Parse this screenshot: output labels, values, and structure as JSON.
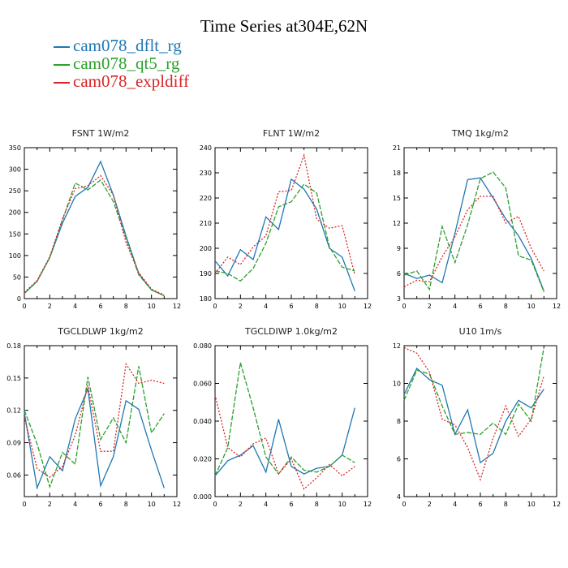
{
  "title": "Time Series at304E,62N",
  "legend": [
    {
      "label": "cam078_dflt_rg",
      "color": "#1f77b4"
    },
    {
      "label": "cam078_qt5_rg",
      "color": "#2ca02c"
    },
    {
      "label": "cam078_expldiff",
      "color": "#d62728"
    }
  ],
  "chart_data": [
    {
      "type": "line",
      "title": "FSNT 1W/m2",
      "x": [
        0,
        1,
        2,
        3,
        4,
        5,
        6,
        7,
        8,
        9,
        10,
        11
      ],
      "xlim": [
        0,
        12
      ],
      "xticks": [
        "0",
        "2",
        "4",
        "6",
        "8",
        "10",
        "12"
      ],
      "ylim": [
        0,
        350
      ],
      "yticks": [
        "0",
        "50",
        "100",
        "150",
        "200",
        "250",
        "300",
        "350"
      ],
      "series": [
        {
          "name": "cam078_dflt_rg",
          "values": [
            12,
            40,
            95,
            175,
            237,
            258,
            318,
            240,
            145,
            58,
            20,
            7
          ]
        },
        {
          "name": "cam078_qt5_rg",
          "values": [
            12,
            40,
            95,
            182,
            268,
            252,
            275,
            225,
            140,
            55,
            20,
            7
          ]
        },
        {
          "name": "cam078_expldiff",
          "values": [
            14,
            42,
            97,
            185,
            255,
            262,
            285,
            240,
            130,
            60,
            22,
            8
          ]
        }
      ]
    },
    {
      "type": "line",
      "title": "FLNT 1W/m2",
      "x": [
        0,
        1,
        2,
        3,
        4,
        5,
        6,
        7,
        8,
        9,
        10,
        11
      ],
      "xlim": [
        0,
        12
      ],
      "xticks": [
        "0",
        "2",
        "4",
        "6",
        "8",
        "10",
        "12"
      ],
      "ylim": [
        180,
        240
      ],
      "yticks": [
        "180",
        "190",
        "200",
        "210",
        "220",
        "230",
        "240"
      ],
      "series": [
        {
          "name": "cam078_dflt_rg",
          "values": [
            195,
            189,
            199.5,
            195.5,
            212.5,
            207.5,
            227.5,
            223.5,
            215.5,
            200,
            196.5,
            183
          ]
        },
        {
          "name": "cam078_qt5_rg",
          "values": [
            191,
            190,
            187,
            192,
            202,
            216.5,
            218.5,
            225.5,
            222,
            200.5,
            192.5,
            191
          ]
        },
        {
          "name": "cam078_expldiff",
          "values": [
            190,
            196.5,
            193.5,
            200.5,
            205,
            222.5,
            223,
            237,
            211.5,
            208,
            209,
            189.5
          ]
        }
      ]
    },
    {
      "type": "line",
      "title": "TMQ 1kg/m2",
      "x": [
        0,
        1,
        2,
        3,
        4,
        5,
        6,
        7,
        8,
        9,
        10,
        11
      ],
      "xlim": [
        0,
        12
      ],
      "xticks": [
        "0",
        "2",
        "4",
        "6",
        "8",
        "10",
        "12"
      ],
      "ylim": [
        3,
        21
      ],
      "yticks": [
        "3",
        "6",
        "9",
        "12",
        "15",
        "18",
        "21"
      ],
      "series": [
        {
          "name": "cam078_dflt_rg",
          "values": [
            6,
            5.4,
            5.8,
            4.9,
            10.8,
            17.2,
            17.4,
            15,
            12.5,
            10.5,
            7.8,
            3.9
          ]
        },
        {
          "name": "cam078_qt5_rg",
          "values": [
            5.8,
            6.3,
            4.1,
            11.6,
            7.3,
            11.8,
            17.3,
            18.1,
            16.2,
            8.1,
            7.6,
            3.8
          ]
        },
        {
          "name": "cam078_expldiff",
          "values": [
            4.4,
            5.2,
            5,
            8,
            10.4,
            13.6,
            15.2,
            15.2,
            12,
            12.8,
            9,
            6.3
          ]
        }
      ]
    },
    {
      "type": "line",
      "title": "TGCLDLWP 1kg/m2",
      "x": [
        0,
        1,
        2,
        3,
        4,
        5,
        6,
        7,
        8,
        9,
        10,
        11
      ],
      "xlim": [
        0,
        12
      ],
      "xticks": [
        "0",
        "2",
        "4",
        "6",
        "8",
        "10",
        "12"
      ],
      "ylim": [
        0.04,
        0.18
      ],
      "yticks": [
        "",
        "0.06",
        "0.09",
        "0.12",
        "0.15",
        "0.18"
      ],
      "ytick_values": [
        0.04,
        0.06,
        0.09,
        0.12,
        0.15,
        0.18
      ],
      "series": [
        {
          "name": "cam078_dflt_rg",
          "values": [
            0.118,
            0.048,
            0.077,
            0.064,
            0.112,
            0.14,
            0.05,
            0.077,
            0.129,
            0.121,
            0.083,
            0.048
          ]
        },
        {
          "name": "cam078_qt5_rg",
          "values": [
            0.12,
            0.089,
            0.049,
            0.081,
            0.07,
            0.151,
            0.093,
            0.113,
            0.09,
            0.161,
            0.099,
            0.117
          ]
        },
        {
          "name": "cam078_expldiff",
          "values": [
            0.114,
            0.066,
            0.058,
            0.068,
            0.097,
            0.143,
            0.082,
            0.082,
            0.163,
            0.145,
            0.148,
            0.145
          ]
        }
      ]
    },
    {
      "type": "line",
      "title": "TGCLDIWP 1.0kg/m2",
      "x": [
        0,
        1,
        2,
        3,
        4,
        5,
        6,
        7,
        8,
        9,
        10,
        11
      ],
      "xlim": [
        0,
        12
      ],
      "xticks": [
        "0",
        "2",
        "4",
        "6",
        "8",
        "10",
        "12"
      ],
      "ylim": [
        0,
        0.08
      ],
      "yticks": [
        "0.000",
        "0.020",
        "0.040",
        "0.060",
        "0.080"
      ],
      "series": [
        {
          "name": "cam078_dflt_rg",
          "values": [
            0.011,
            0.019,
            0.022,
            0.027,
            0.013,
            0.041,
            0.016,
            0.012,
            0.015,
            0.016,
            0.022,
            0.047
          ]
        },
        {
          "name": "cam078_qt5_rg",
          "values": [
            0.011,
            0.026,
            0.071,
            0.047,
            0.021,
            0.012,
            0.021,
            0.014,
            0.013,
            0.016,
            0.022,
            0.018
          ]
        },
        {
          "name": "cam078_expldiff",
          "values": [
            0.054,
            0.026,
            0.021,
            0.028,
            0.031,
            0.012,
            0.02,
            0.004,
            0.01,
            0.017,
            0.011,
            0.016
          ]
        }
      ]
    },
    {
      "type": "line",
      "title": "U10 1m/s",
      "x": [
        0,
        1,
        2,
        3,
        4,
        5,
        6,
        7,
        8,
        9,
        10,
        11
      ],
      "xlim": [
        0,
        12
      ],
      "xticks": [
        "0",
        "2",
        "4",
        "6",
        "8",
        "10",
        "12"
      ],
      "ylim": [
        4,
        12
      ],
      "yticks": [
        "4",
        "6",
        "8",
        "10",
        "12"
      ],
      "series": [
        {
          "name": "cam078_dflt_rg",
          "values": [
            9.4,
            10.8,
            10.2,
            9.9,
            7.3,
            8.6,
            5.8,
            6.3,
            8,
            9.1,
            8.7,
            9.7
          ]
        },
        {
          "name": "cam078_qt5_rg",
          "values": [
            9.1,
            10.7,
            10.5,
            8.8,
            7.3,
            7.4,
            7.3,
            7.9,
            7.3,
            8.9,
            8,
            11.9
          ]
        },
        {
          "name": "cam078_expldiff",
          "values": [
            11.9,
            11.6,
            10.6,
            8.1,
            7.8,
            6.6,
            4.9,
            7.1,
            8.8,
            7.2,
            8.1,
            10.4
          ]
        }
      ]
    }
  ]
}
